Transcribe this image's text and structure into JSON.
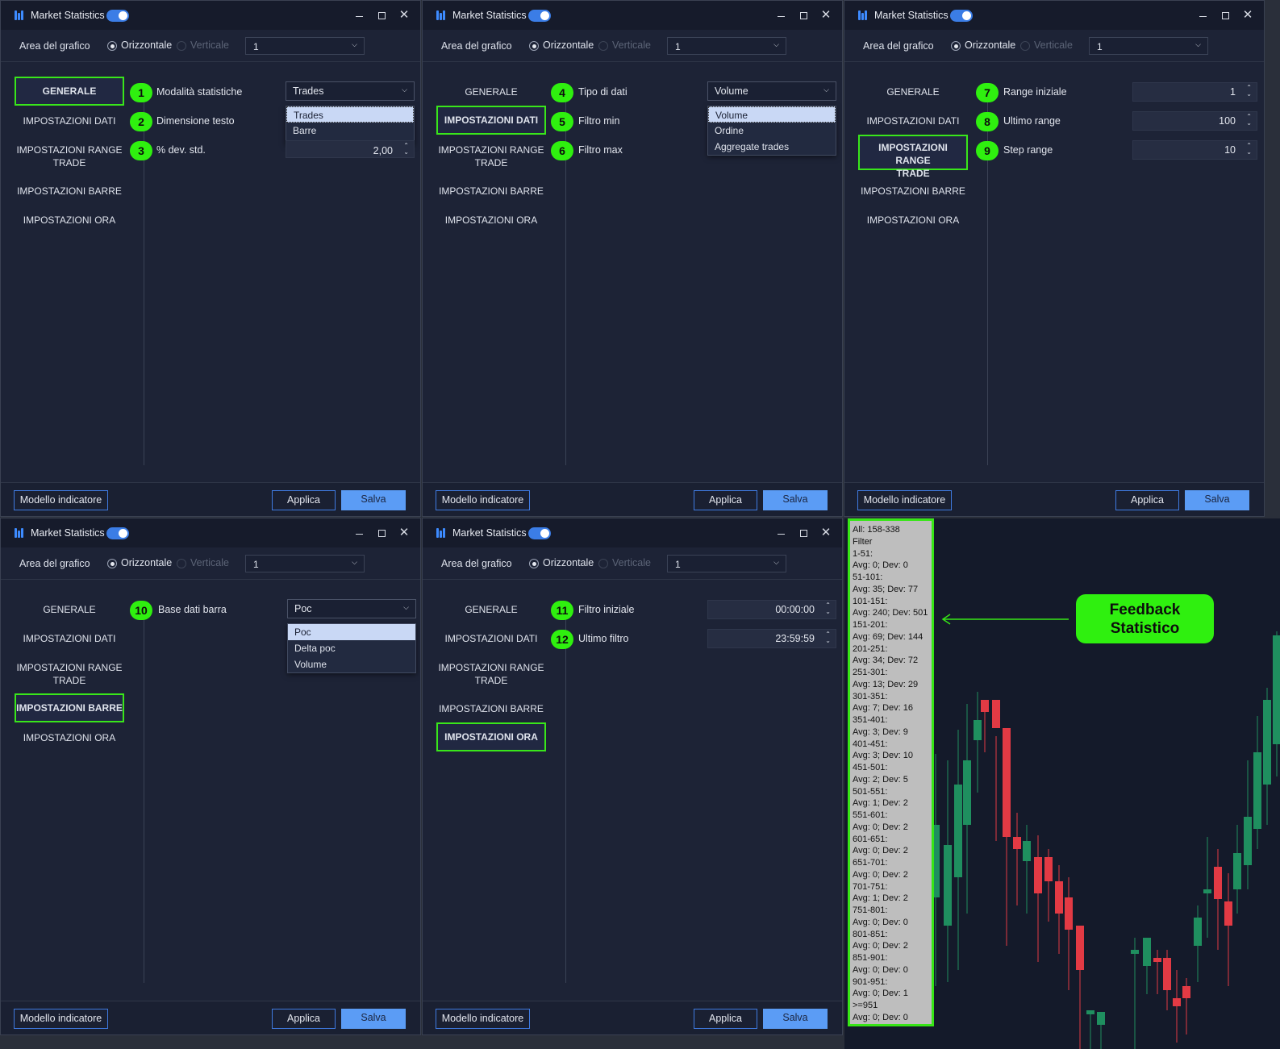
{
  "app": {
    "title": "Market Statistics",
    "area_label": "Area del grafico",
    "radio_horizontal": "Orizzontale",
    "radio_vertical": "Verticale",
    "area_select_value": "1"
  },
  "nav": {
    "generale": "GENERALE",
    "impostazioni_dati": "IMPOSTAZIONI DATI",
    "impostazioni_range_trade_1": "IMPOSTAZIONI RANGE",
    "impostazioni_range_trade_2": "TRADE",
    "impostazioni_barre": "IMPOSTAZIONI BARRE",
    "impostazioni_ora": "IMPOSTAZIONI ORA"
  },
  "footer": {
    "modello": "Modello indicatore",
    "applica": "Applica",
    "salva": "Salva"
  },
  "panel1": {
    "items": [
      {
        "badge": "1",
        "label": "Modalità statistiche"
      },
      {
        "badge": "2",
        "label": "Dimensione testo"
      },
      {
        "badge": "3",
        "label": "% dev. std."
      }
    ],
    "dropdown_value": "Trades",
    "dropdown_options": [
      "Trades",
      "Barre"
    ],
    "stddev_value": "2,00"
  },
  "panel2": {
    "items": [
      {
        "badge": "4",
        "label": "Tipo di dati"
      },
      {
        "badge": "5",
        "label": "Filtro min"
      },
      {
        "badge": "6",
        "label": "Filtro max"
      }
    ],
    "dropdown_value": "Volume",
    "dropdown_options": [
      "Volume",
      "Ordine",
      "Aggregate trades"
    ]
  },
  "panel3": {
    "items": [
      {
        "badge": "7",
        "label": "Range iniziale",
        "value": "1"
      },
      {
        "badge": "8",
        "label": "Ultimo range",
        "value": "100"
      },
      {
        "badge": "9",
        "label": "Step range",
        "value": "10"
      }
    ]
  },
  "panel4": {
    "items": [
      {
        "badge": "10",
        "label": "Base dati barra"
      }
    ],
    "dropdown_value": "Poc",
    "dropdown_options": [
      "Poc",
      "Delta poc",
      "Volume"
    ]
  },
  "panel5": {
    "items": [
      {
        "badge": "11",
        "label": "Filtro iniziale",
        "value": "00:00:00"
      },
      {
        "badge": "12",
        "label": "Ultimo filtro",
        "value": "23:59:59"
      }
    ]
  },
  "feedback": {
    "pill_line1": "Feedback",
    "pill_line2": "Statistico",
    "stats_lines": [
      "All: 158-338",
      "Filter",
      "1-51:",
      "Avg: 0; Dev: 0",
      "51-101:",
      "Avg: 35; Dev: 77",
      "101-151:",
      "Avg: 240; Dev: 501",
      "151-201:",
      "Avg: 69; Dev: 144",
      "201-251:",
      "Avg: 34; Dev: 72",
      "251-301:",
      "Avg: 13; Dev: 29",
      "301-351:",
      "Avg: 7; Dev: 16",
      "351-401:",
      "Avg: 3; Dev: 9",
      "401-451:",
      "Avg: 3; Dev: 10",
      "451-501:",
      "Avg: 2; Dev: 5",
      "501-551:",
      "Avg: 1; Dev: 2",
      "551-601:",
      "Avg: 0; Dev: 2",
      "601-651:",
      "Avg: 0; Dev: 2",
      "651-701:",
      "Avg: 0; Dev: 2",
      "701-751:",
      "Avg: 1; Dev: 2",
      "751-801:",
      "Avg: 0; Dev: 0",
      "801-851:",
      "Avg: 0; Dev: 2",
      "851-901:",
      "Avg: 0; Dev: 0",
      "901-951:",
      "Avg: 0; Dev: 1",
      ">=951",
      "Avg: 0; Dev: 0"
    ]
  },
  "colors": {
    "accent_green": "#2ff00f",
    "bull": "#1f8f5f",
    "bear": "#e23a44",
    "window_bg": "#1d2336",
    "button_blue": "#5b9cf5"
  }
}
